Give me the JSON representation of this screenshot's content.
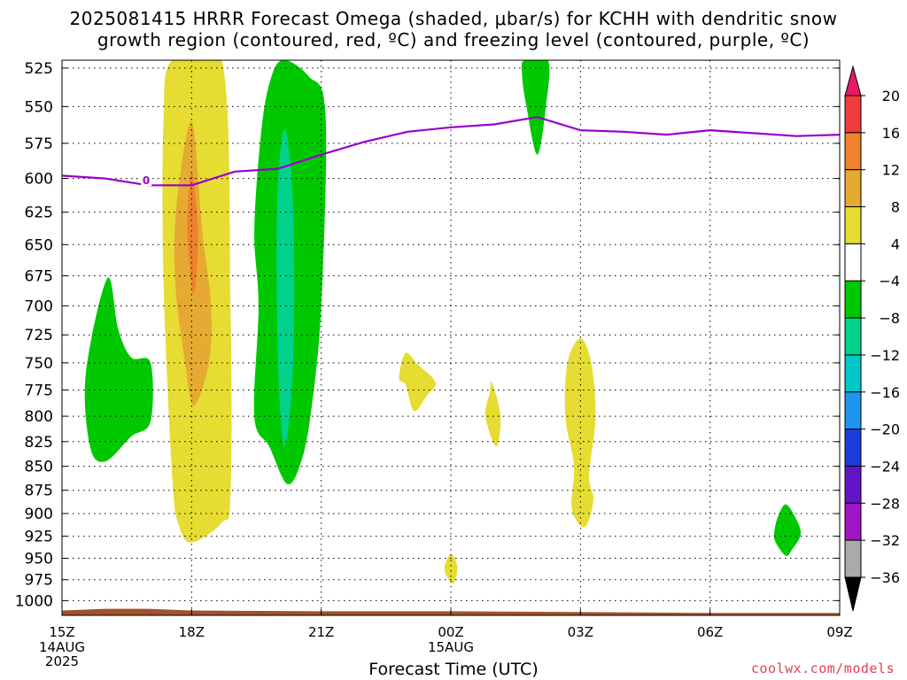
{
  "title": {
    "line1": "2025081415 HRRR Forecast Omega (shaded, μbar/s) for KCHH with dendritic snow",
    "line2": "growth region (contoured, red, ºC) and freezing level (contoured, purple, ºC)"
  },
  "xlabel": "Forecast Time (UTC)",
  "credit": "coolwx.com/models",
  "chart_data": {
    "type": "heatmap",
    "title": "2025081415 HRRR Forecast Omega (shaded, μbar/s) for KCHH with dendritic snow growth region (contoured, red, ºC) and freezing level (contoured, purple, ºC)",
    "xlabel": "Forecast Time (UTC)",
    "ylabel": "",
    "x_ticks": [
      {
        "hour": 0,
        "label": "15Z",
        "sub": [
          "14AUG",
          "2025"
        ]
      },
      {
        "hour": 3,
        "label": "18Z",
        "sub": []
      },
      {
        "hour": 6,
        "label": "21Z",
        "sub": []
      },
      {
        "hour": 9,
        "label": "00Z",
        "sub": [
          "15AUG"
        ]
      },
      {
        "hour": 12,
        "label": "03Z",
        "sub": []
      },
      {
        "hour": 15,
        "label": "06Z",
        "sub": []
      },
      {
        "hour": 18,
        "label": "09Z",
        "sub": []
      }
    ],
    "xlim_hours": [
      0,
      18
    ],
    "y_ticks": [
      525,
      550,
      575,
      600,
      625,
      650,
      675,
      700,
      725,
      750,
      775,
      800,
      825,
      850,
      875,
      900,
      925,
      950,
      975,
      1000
    ],
    "ylim_hpa": [
      1018,
      520
    ],
    "y_scale": "log",
    "grid": true,
    "colorbar": {
      "labels": [
        "20",
        "16",
        "12",
        "8",
        "4",
        "-4",
        "-8",
        "-12",
        "-16",
        "-20",
        "-24",
        "-28",
        "-32",
        "-36"
      ],
      "colors": [
        "#e8186a",
        "#f03c3c",
        "#f0822d",
        "#e6aa32",
        "#e6dc32",
        "#ffffff",
        "#00c800",
        "#00d28c",
        "#00c8c8",
        "#1e96f0",
        "#1e3cdc",
        "#6414c8",
        "#a014c8",
        "#aaaaaa",
        "#000000"
      ]
    },
    "omega_regions": [
      {
        "level": "4 to 8",
        "color": "#e6dc32",
        "points": [
          [
            2.55,
            520
          ],
          [
            3.7,
            520
          ],
          [
            3.9,
            700
          ],
          [
            3.9,
            880
          ],
          [
            3.7,
            910
          ],
          [
            3.0,
            932
          ],
          [
            2.7,
            912
          ],
          [
            2.55,
            860
          ],
          [
            2.35,
            680
          ],
          [
            2.35,
            560
          ]
        ]
      },
      {
        "level": "8 to 12",
        "color": "#e6aa32",
        "points": [
          [
            3.0,
            560
          ],
          [
            3.25,
            640
          ],
          [
            3.45,
            700
          ],
          [
            3.4,
            750
          ],
          [
            3.05,
            790
          ],
          [
            2.85,
            750
          ],
          [
            2.62,
            680
          ],
          [
            2.65,
            620
          ]
        ]
      },
      {
        "level": "12 to 16",
        "color": "#f0822d",
        "points": [
          [
            3.0,
            595
          ],
          [
            3.15,
            640
          ],
          [
            3.05,
            690
          ],
          [
            2.9,
            640
          ]
        ]
      },
      {
        "level": "-4 to -8",
        "color": "#00c800",
        "points": [
          [
            5.1,
            520
          ],
          [
            5.7,
            530
          ],
          [
            6.1,
            555
          ],
          [
            6.0,
            700
          ],
          [
            5.75,
            800
          ],
          [
            5.5,
            850
          ],
          [
            5.2,
            868
          ],
          [
            4.8,
            830
          ],
          [
            4.45,
            800
          ],
          [
            4.55,
            700
          ],
          [
            4.45,
            640
          ],
          [
            4.6,
            570
          ],
          [
            4.8,
            535
          ]
        ]
      },
      {
        "level": "-8 to -12",
        "color": "#00d28c",
        "points": [
          [
            5.15,
            565
          ],
          [
            5.35,
            620
          ],
          [
            5.35,
            750
          ],
          [
            5.15,
            830
          ],
          [
            5.0,
            750
          ],
          [
            4.98,
            620
          ]
        ]
      },
      {
        "level": "-4 to -8",
        "color": "#00c800",
        "points": [
          [
            1.05,
            677
          ],
          [
            1.3,
            720
          ],
          [
            1.6,
            745
          ],
          [
            2.05,
            750
          ],
          [
            2.05,
            805
          ],
          [
            1.6,
            820
          ],
          [
            1.0,
            845
          ],
          [
            0.65,
            830
          ],
          [
            0.55,
            760
          ]
        ]
      },
      {
        "level": "-4 to -8",
        "color": "#00c800",
        "points": [
          [
            10.7,
            520
          ],
          [
            11.25,
            520
          ],
          [
            11.2,
            550
          ],
          [
            11.0,
            583
          ],
          [
            10.75,
            550
          ],
          [
            10.65,
            530
          ]
        ]
      },
      {
        "level": "-4 to -8",
        "color": "#00c800",
        "points": [
          [
            16.75,
            890
          ],
          [
            16.95,
            902
          ],
          [
            17.1,
            922
          ],
          [
            16.9,
            940
          ],
          [
            16.75,
            947
          ],
          [
            16.5,
            930
          ],
          [
            16.5,
            916
          ],
          [
            16.6,
            900
          ]
        ]
      },
      {
        "level": "4 to 8",
        "color": "#e6dc32",
        "points": [
          [
            7.95,
            741
          ],
          [
            8.25,
            752
          ],
          [
            8.65,
            768
          ],
          [
            8.45,
            780
          ],
          [
            8.15,
            795
          ],
          [
            7.95,
            770
          ],
          [
            7.8,
            764
          ]
        ]
      },
      {
        "level": "4 to 8",
        "color": "#e6dc32",
        "points": [
          [
            9.0,
            945
          ],
          [
            9.15,
            960
          ],
          [
            9.05,
            980
          ],
          [
            8.85,
            963
          ]
        ]
      },
      {
        "level": "4 to 8",
        "color": "#e6dc32",
        "points": [
          [
            9.95,
            768
          ],
          [
            10.15,
            800
          ],
          [
            10.05,
            830
          ],
          [
            9.8,
            800
          ],
          [
            9.9,
            778
          ]
        ]
      },
      {
        "level": "4 to 8",
        "color": "#e6dc32",
        "points": [
          [
            12.0,
            728
          ],
          [
            12.25,
            750
          ],
          [
            12.35,
            800
          ],
          [
            12.2,
            860
          ],
          [
            12.3,
            885
          ],
          [
            12.1,
            915
          ],
          [
            11.8,
            895
          ],
          [
            11.85,
            850
          ],
          [
            11.65,
            800
          ],
          [
            11.7,
            750
          ]
        ]
      }
    ],
    "freezing_level": {
      "label": "0",
      "color": "#9900cc",
      "points": [
        [
          0.0,
          598
        ],
        [
          1.0,
          600
        ],
        [
          2.0,
          605
        ],
        [
          3.0,
          605
        ],
        [
          4.0,
          595
        ],
        [
          5.0,
          593
        ],
        [
          6.0,
          583
        ],
        [
          7.0,
          574
        ],
        [
          8.0,
          567
        ],
        [
          9.0,
          564
        ],
        [
          10.0,
          562
        ],
        [
          11.0,
          557
        ],
        [
          12.0,
          566
        ],
        [
          13.0,
          567
        ],
        [
          14.0,
          569
        ],
        [
          15.0,
          566
        ],
        [
          16.0,
          568
        ],
        [
          17.0,
          570
        ],
        [
          18.0,
          569
        ]
      ]
    },
    "terrain": {
      "color": "#a0522d",
      "points": [
        [
          0.0,
          1012
        ],
        [
          1.0,
          1010
        ],
        [
          2.0,
          1010
        ],
        [
          3.0,
          1012
        ],
        [
          6.0,
          1013
        ],
        [
          9.0,
          1013
        ],
        [
          12.0,
          1014
        ],
        [
          15.0,
          1015
        ],
        [
          18.0,
          1015
        ]
      ]
    }
  }
}
